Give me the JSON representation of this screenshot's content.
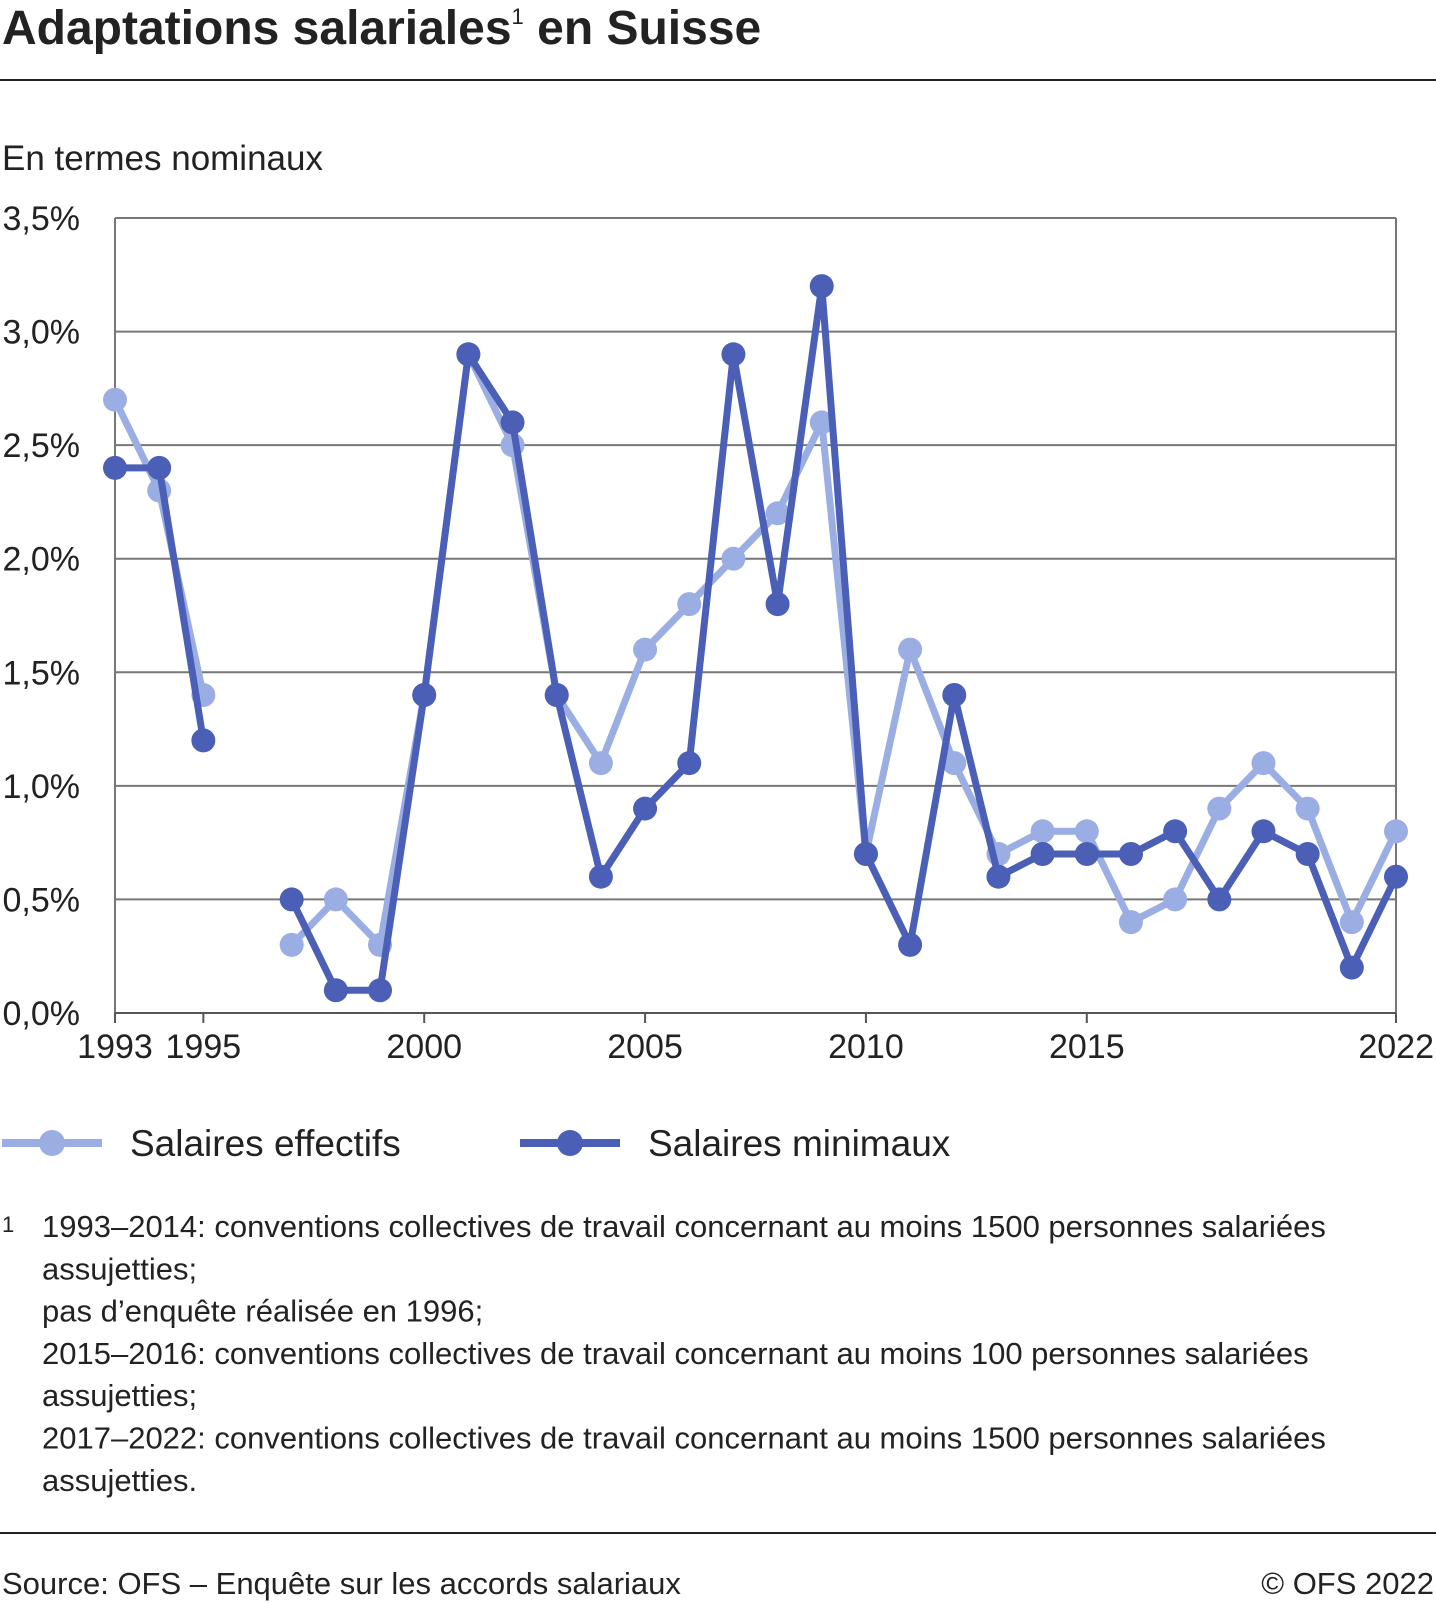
{
  "chart_data": {
    "type": "line",
    "title": "Adaptations salariales",
    "title_note": "1",
    "title_end": " en Suisse",
    "subtitle": "En termes nominaux",
    "x": [
      1993,
      1994,
      1995,
      1996,
      1997,
      1998,
      1999,
      2000,
      2001,
      2002,
      2003,
      2004,
      2005,
      2006,
      2007,
      2008,
      2009,
      2010,
      2011,
      2012,
      2013,
      2014,
      2015,
      2016,
      2017,
      2018,
      2019,
      2020,
      2021,
      2022
    ],
    "series": [
      {
        "name": "Salaires effectifs",
        "color": "#9aaee3",
        "values": [
          2.7,
          2.3,
          1.4,
          null,
          0.3,
          0.5,
          0.3,
          1.4,
          2.9,
          2.5,
          1.4,
          1.1,
          1.6,
          1.8,
          2.0,
          2.2,
          2.6,
          0.7,
          1.6,
          1.1,
          0.7,
          0.8,
          0.8,
          0.4,
          0.5,
          0.9,
          1.1,
          0.9,
          0.4,
          0.8
        ]
      },
      {
        "name": "Salaires minimaux",
        "color": "#4a5fb5",
        "values": [
          2.4,
          2.4,
          1.2,
          null,
          0.5,
          0.1,
          0.1,
          1.4,
          2.9,
          2.6,
          1.4,
          0.6,
          0.9,
          1.1,
          2.9,
          1.8,
          3.2,
          0.7,
          0.3,
          1.4,
          0.6,
          0.7,
          0.7,
          0.7,
          0.8,
          0.5,
          0.8,
          0.7,
          0.2,
          0.6
        ]
      }
    ],
    "xlim": [
      1993,
      2022
    ],
    "xticks": [
      1993,
      1995,
      2000,
      2005,
      2010,
      2015,
      2022
    ],
    "ylim": [
      0,
      3.5
    ],
    "yticks": [
      {
        "value": 0,
        "label": "0,0%"
      },
      {
        "value": 0.5,
        "label": "0,5%"
      },
      {
        "value": 1,
        "label": "1,0%"
      },
      {
        "value": 1.5,
        "label": "1,5%"
      },
      {
        "value": 2,
        "label": "2,0%"
      },
      {
        "value": 2.5,
        "label": "2,5%"
      },
      {
        "value": 3,
        "label": "3,0%"
      },
      {
        "value": 3.5,
        "label": "3,5%"
      }
    ],
    "grid": true,
    "footnote_marker": "1",
    "footnote": [
      "1993–2014: conventions collectives de travail concernant au moins 1500 personnes salariées",
      "assujetties;",
      "pas d’enquête réalisée en 1996;",
      "2015–2016: conventions collectives de travail concernant au moins 100 personnes salariées",
      "assujetties;",
      "2017–2022: conventions collectives de travail concernant au moins 1500 personnes salariées",
      "assujetties."
    ],
    "source": "Source: OFS – Enquête sur les accords salariaux",
    "copyright": "© OFS 2022"
  }
}
